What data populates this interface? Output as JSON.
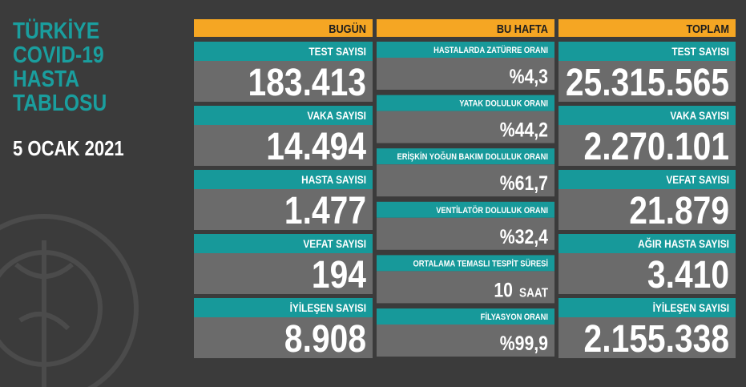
{
  "title_lines": [
    "TÜRKİYE",
    "COVID-19",
    "HASTA",
    "TABLOSU"
  ],
  "date": "5 OCAK 2021",
  "columns": [
    {
      "header": "BUGÜN",
      "cards": [
        {
          "label": "TEST SAYISI",
          "value": "183.413"
        },
        {
          "label": "VAKA SAYISI",
          "value": "14.494"
        },
        {
          "label": "HASTA SAYISI",
          "value": "1.477"
        },
        {
          "label": "VEFAT SAYISI",
          "value": "194"
        },
        {
          "label": "İYİLEŞEN SAYISI",
          "value": "8.908"
        }
      ]
    },
    {
      "header": "BU HAFTA",
      "cards": [
        {
          "label": "HASTALARDA ZATÜRRE ORANI",
          "value": "%4,3"
        },
        {
          "label": "YATAK DOLULUK ORANI",
          "value": "%44,2"
        },
        {
          "label": "ERİŞKİN YOĞUN BAKIM DOLULUK ORANI",
          "value": "%61,7"
        },
        {
          "label": "VENTİLATÖR DOLULUK ORANI",
          "value": "%32,4"
        },
        {
          "label": "ORTALAMA TEMASLI TESPİT SÜRESİ",
          "value": "10",
          "unit": "SAAT"
        },
        {
          "label": "FİLYASYON ORANI",
          "value": "%99,9"
        }
      ]
    },
    {
      "header": "TOPLAM",
      "cards": [
        {
          "label": "TEST SAYISI",
          "value": "25.315.565"
        },
        {
          "label": "VAKA SAYISI",
          "value": "2.270.101"
        },
        {
          "label": "VEFAT SAYISI",
          "value": "21.879"
        },
        {
          "label": "AĞIR HASTA SAYISI",
          "value": "3.410"
        },
        {
          "label": "İYİLEŞEN SAYISI",
          "value": "2.155.338"
        }
      ]
    }
  ]
}
